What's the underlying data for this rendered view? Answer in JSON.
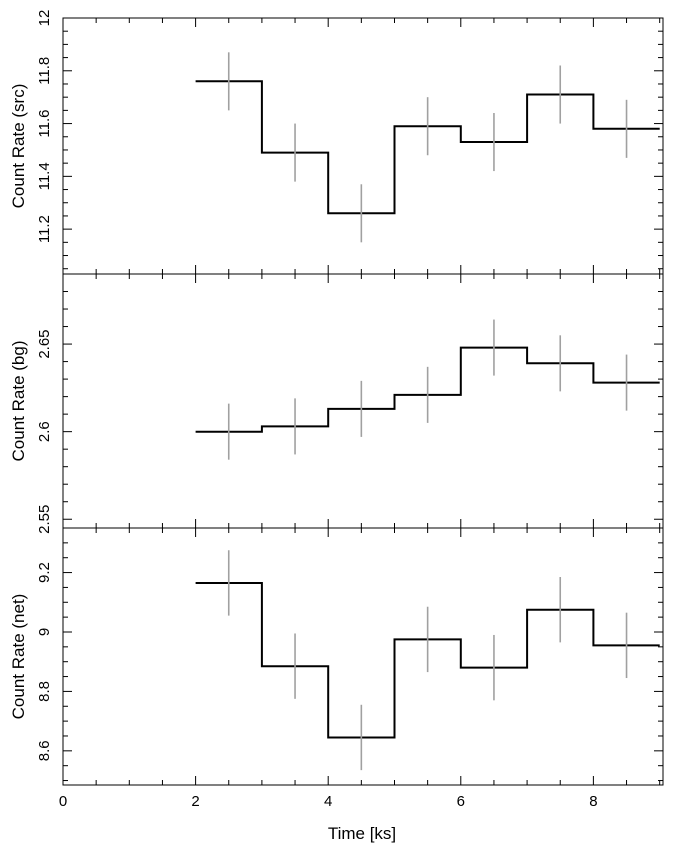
{
  "chart_data": [
    {
      "type": "line",
      "style": "step histogram with vertical error bars",
      "xlabel": "Time [ks]",
      "ylabel": "Count Rate (src)",
      "xlim": [
        0,
        9.05
      ],
      "ylim": [
        11.03,
        12.0
      ],
      "y_ticks": [
        11.2,
        11.4,
        11.6,
        11.8,
        12
      ],
      "y_minor_step": 0.05,
      "series": [
        {
          "name": "",
          "x_edges": [
            2,
            3,
            4,
            5,
            6,
            7,
            8,
            9
          ],
          "x": [
            2.5,
            3.5,
            4.5,
            5.5,
            6.5,
            7.5,
            8.5
          ],
          "y": [
            11.76,
            11.49,
            11.26,
            11.59,
            11.53,
            11.71,
            11.58
          ],
          "yerr": [
            0.11,
            0.11,
            0.11,
            0.11,
            0.11,
            0.11,
            0.11
          ]
        }
      ]
    },
    {
      "type": "line",
      "style": "step histogram with vertical error bars",
      "xlabel": "Time [ks]",
      "ylabel": "Count Rate (bg)",
      "xlim": [
        0,
        9.05
      ],
      "ylim": [
        2.545,
        2.69
      ],
      "y_ticks": [
        2.55,
        2.6,
        2.65
      ],
      "y_minor_step": 0.01,
      "series": [
        {
          "name": "",
          "x_edges": [
            2,
            3,
            4,
            5,
            6,
            7,
            8,
            9
          ],
          "x": [
            2.5,
            3.5,
            4.5,
            5.5,
            6.5,
            7.5,
            8.5
          ],
          "y": [
            2.6,
            2.603,
            2.613,
            2.621,
            2.648,
            2.639,
            2.628
          ],
          "yerr": [
            0.016,
            0.016,
            0.016,
            0.016,
            0.016,
            0.016,
            0.016
          ]
        }
      ]
    },
    {
      "type": "line",
      "style": "step histogram with vertical error bars",
      "xlabel": "Time [ks]",
      "ylabel": "Count Rate (net)",
      "xlim": [
        0,
        9.05
      ],
      "ylim": [
        8.485,
        9.35
      ],
      "x_ticks": [
        0,
        2,
        4,
        6,
        8
      ],
      "x_minor_step": 0.5,
      "y_ticks": [
        8.6,
        8.8,
        9,
        9.2
      ],
      "y_minor_step": 0.05,
      "series": [
        {
          "name": "",
          "x_edges": [
            2,
            3,
            4,
            5,
            6,
            7,
            8,
            9
          ],
          "x": [
            2.5,
            3.5,
            4.5,
            5.5,
            6.5,
            7.5,
            8.5
          ],
          "y": [
            9.165,
            8.885,
            8.645,
            8.975,
            8.88,
            9.075,
            8.955
          ],
          "yerr": [
            0.11,
            0.11,
            0.11,
            0.11,
            0.11,
            0.11,
            0.11
          ]
        }
      ]
    }
  ]
}
